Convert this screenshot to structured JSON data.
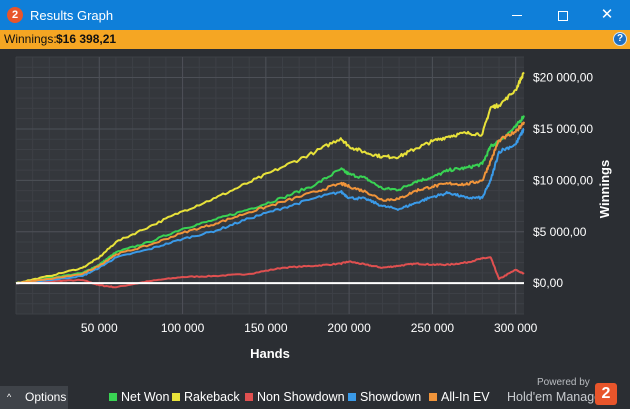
{
  "window": {
    "title": "Results Graph",
    "app_icon_glyph": "2",
    "controls": {
      "minimize": "minimize-icon",
      "maximize": "maximize-icon",
      "close": "close-icon",
      "close_glyph": "✕"
    }
  },
  "infobar": {
    "label": "Winnings:",
    "value": "$16 398,21",
    "help_glyph": "?"
  },
  "chart_data": {
    "type": "line",
    "xlabel": "Hands",
    "ylabel": "Winnings",
    "xlim": [
      0,
      305000
    ],
    "ylim": [
      -3000,
      22000
    ],
    "x_ticks": [
      50000,
      100000,
      150000,
      200000,
      250000,
      300000
    ],
    "x_tick_labels": [
      "50 000",
      "100 000",
      "150 000",
      "200 000",
      "250 000",
      "300 000"
    ],
    "y_ticks": [
      0,
      5000,
      10000,
      15000,
      20000
    ],
    "y_tick_labels": [
      "$0,00",
      "$5 000,00",
      "$10 000,00",
      "$15 000,00",
      "$20 000,00"
    ],
    "grid": true,
    "legend_position": "bottom",
    "x": [
      0,
      20000,
      40000,
      50000,
      60000,
      80000,
      100000,
      120000,
      140000,
      160000,
      180000,
      195000,
      200000,
      210000,
      220000,
      230000,
      240000,
      250000,
      260000,
      270000,
      280000,
      285000,
      290000,
      300000,
      305000
    ],
    "series": [
      {
        "name": "Net Won",
        "color": "#39d353",
        "values": [
          0,
          500,
          1000,
          1800,
          3000,
          4000,
          5300,
          6200,
          7200,
          8300,
          9600,
          11100,
          10600,
          10200,
          9200,
          9100,
          9900,
          10300,
          11000,
          11200,
          11600,
          13300,
          13800,
          15200,
          16300
        ]
      },
      {
        "name": "Rakeback",
        "color": "#e8e23a",
        "values": [
          0,
          700,
          1500,
          2500,
          4000,
          5500,
          7000,
          8300,
          9800,
          11300,
          12800,
          14100,
          13300,
          12700,
          12300,
          12300,
          13100,
          13800,
          14300,
          14600,
          14500,
          17100,
          17300,
          18800,
          20500
        ]
      },
      {
        "name": "Non Showdown",
        "color": "#e05050",
        "values": [
          0,
          200,
          300,
          -200,
          -400,
          200,
          600,
          700,
          900,
          1500,
          1700,
          1900,
          2100,
          1800,
          1500,
          1700,
          1900,
          1800,
          1800,
          2000,
          2400,
          2500,
          400,
          1300,
          900
        ]
      },
      {
        "name": "Showdown",
        "color": "#3a9ae8",
        "values": [
          0,
          300,
          700,
          1500,
          2500,
          3300,
          4300,
          5100,
          6300,
          7300,
          8300,
          8900,
          8300,
          8200,
          7500,
          7200,
          7800,
          8400,
          8800,
          8300,
          8300,
          10000,
          12800,
          13500,
          15000
        ]
      },
      {
        "name": "All-In EV",
        "color": "#f0943a",
        "values": [
          0,
          400,
          900,
          1700,
          2800,
          3700,
          4900,
          5800,
          6900,
          7900,
          8900,
          9700,
          9400,
          8900,
          8100,
          8200,
          9000,
          9400,
          9700,
          9600,
          10000,
          11900,
          13900,
          14700,
          15700
        ]
      }
    ]
  },
  "bottom": {
    "options_label": "Options",
    "options_chevron": "^",
    "powered_by": "Powered by",
    "brand": "Hold'em Manager",
    "brand_glyph": "2"
  }
}
